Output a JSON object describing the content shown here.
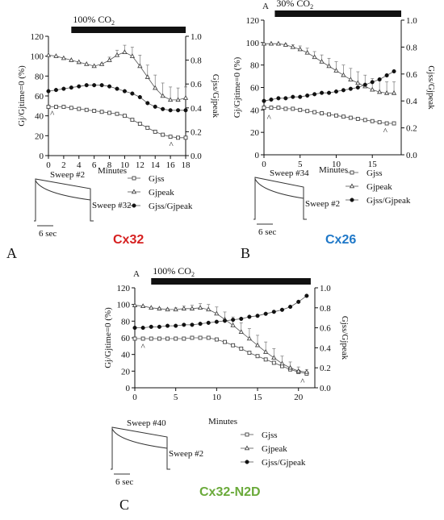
{
  "chart_data": [
    {
      "type": "scatter",
      "panel": "A",
      "label": "Cx32",
      "label_color": "#d62020",
      "panel_letter": "",
      "co2_label": "100% CO",
      "co2_sub": "2",
      "co2_bar": [
        3,
        18
      ],
      "xlabel": "Minutes",
      "ylabel": "Gj/Gjtime=0 (%)",
      "y2label": "Gjss/Gjpeak",
      "xlim": [
        0,
        18
      ],
      "ylim": [
        0,
        120
      ],
      "y2lim": [
        0,
        1.0
      ],
      "xticks": [
        0,
        2,
        4,
        6,
        8,
        10,
        12,
        14,
        16,
        18
      ],
      "yticks": [
        0,
        20,
        40,
        60,
        80,
        100,
        120
      ],
      "y2ticks": [
        "0.0",
        "0.2",
        "0.4",
        "0.6",
        "0.8",
        "1.0"
      ],
      "carets": [
        [
          0.5,
          44
        ],
        [
          16.1,
          13
        ]
      ],
      "series": [
        {
          "name": "Gjss",
          "marker": "square",
          "axis": "left",
          "x": [
            0,
            1,
            2,
            3,
            4,
            5,
            6,
            7,
            8,
            9,
            10,
            11,
            12,
            13,
            14,
            15,
            16,
            17,
            18
          ],
          "y": [
            49,
            49,
            49,
            48,
            47,
            46,
            45,
            44,
            43,
            42,
            40,
            36,
            32,
            28,
            24,
            21,
            19,
            18,
            18
          ]
        },
        {
          "name": "Gjpeak",
          "marker": "triangle",
          "axis": "left",
          "x": [
            0,
            1,
            2,
            3,
            4,
            5,
            6,
            7,
            8,
            9,
            10,
            11,
            12,
            13,
            14,
            15,
            16,
            17,
            18
          ],
          "y": [
            101,
            100,
            98,
            96,
            94,
            92,
            90,
            92,
            96,
            101,
            104,
            100,
            90,
            79,
            68,
            60,
            56,
            56,
            58
          ],
          "err": [
            0,
            0,
            0,
            0,
            0,
            0,
            0,
            1,
            3,
            5,
            7,
            9,
            11,
            12,
            13,
            13,
            13,
            12,
            11
          ]
        },
        {
          "name": "Gjss/Gjpeak",
          "marker": "dot",
          "axis": "right",
          "x": [
            0,
            1,
            2,
            3,
            4,
            5,
            6,
            7,
            8,
            9,
            10,
            11,
            12,
            13,
            14,
            15,
            16,
            17,
            18
          ],
          "y": [
            0.54,
            0.55,
            0.56,
            0.57,
            0.58,
            0.59,
            0.59,
            0.59,
            0.58,
            0.56,
            0.54,
            0.52,
            0.49,
            0.44,
            0.41,
            0.39,
            0.38,
            0.38,
            0.38
          ]
        }
      ]
    },
    {
      "type": "scatter",
      "panel": "B",
      "label": "Cx26",
      "label_color": "#1f78c8",
      "panel_letter": "A",
      "co2_label": "30% CO",
      "co2_sub": "2",
      "co2_bar": [
        1.5,
        19
      ],
      "xlabel": "Minutes",
      "ylabel": "Gj/Gjtime=0 (%)",
      "y2label": "Gjss/Gjpeak",
      "xlim": [
        0,
        19
      ],
      "ylim": [
        0,
        120
      ],
      "y2lim": [
        0,
        1.0
      ],
      "xticks": [
        0,
        5,
        10,
        15
      ],
      "yticks": [
        0,
        20,
        40,
        60,
        80,
        100,
        120
      ],
      "y2ticks": [
        "0.0",
        "0.2",
        "0.4",
        "0.6",
        "0.8",
        "1.0"
      ],
      "carets": [
        [
          0.7,
          35
        ],
        [
          16.8,
          23
        ]
      ],
      "series": [
        {
          "name": "Gjss",
          "marker": "square",
          "axis": "left",
          "x": [
            0,
            1,
            2,
            3,
            4,
            5,
            6,
            7,
            8,
            9,
            10,
            11,
            12,
            13,
            14,
            15,
            16,
            17,
            18
          ],
          "y": [
            42,
            42,
            42,
            41,
            41,
            40,
            39,
            38,
            37,
            36,
            35,
            34,
            33,
            32,
            31,
            30,
            29,
            28,
            28
          ]
        },
        {
          "name": "Gjpeak",
          "marker": "triangle",
          "axis": "left",
          "x": [
            0,
            1,
            2,
            3,
            4,
            5,
            6,
            7,
            8,
            9,
            10,
            11,
            12,
            13,
            14,
            15,
            16,
            17,
            18
          ],
          "y": [
            99,
            99,
            99,
            98,
            96,
            94,
            91,
            87,
            83,
            79,
            75,
            71,
            67,
            64,
            61,
            58,
            56,
            55,
            55
          ],
          "err": [
            0,
            0,
            0,
            1,
            2,
            3,
            4,
            5,
            6,
            7,
            8,
            9,
            10,
            10,
            10,
            10,
            10,
            10,
            10
          ]
        },
        {
          "name": "Gjss/Gjpeak",
          "marker": "dot",
          "axis": "right",
          "x": [
            0,
            1,
            2,
            3,
            4,
            5,
            6,
            7,
            8,
            9,
            10,
            11,
            12,
            13,
            14,
            15,
            16,
            17,
            18
          ],
          "y": [
            0.4,
            0.41,
            0.42,
            0.42,
            0.43,
            0.43,
            0.44,
            0.45,
            0.46,
            0.46,
            0.47,
            0.48,
            0.49,
            0.5,
            0.52,
            0.54,
            0.56,
            0.59,
            0.62
          ]
        }
      ]
    },
    {
      "type": "scatter",
      "panel": "C",
      "label": "Cx32-N2D",
      "label_color": "#6aaa3a",
      "panel_letter": "A",
      "co2_label": "100% CO",
      "co2_sub": "2",
      "co2_bar": [
        2,
        21.5
      ],
      "xlabel": "Minutes",
      "ylabel": "Gj/Gjtime=0 (%)",
      "y2label": "Gjss/Gjpeak",
      "xlim": [
        0,
        22
      ],
      "ylim": [
        0,
        120
      ],
      "y2lim": [
        0,
        1.0
      ],
      "xticks": [
        0,
        5,
        10,
        15,
        20
      ],
      "yticks": [
        0,
        20,
        40,
        60,
        80,
        100,
        120
      ],
      "y2ticks": [
        "0.0",
        "0.2",
        "0.4",
        "0.6",
        "0.8",
        "1.0"
      ],
      "carets": [
        [
          1,
          52
        ],
        [
          20.5,
          10
        ]
      ],
      "series": [
        {
          "name": "Gjss",
          "marker": "square",
          "axis": "left",
          "x": [
            0,
            1,
            2,
            3,
            4,
            5,
            6,
            7,
            8,
            9,
            10,
            11,
            12,
            13,
            14,
            15,
            16,
            17,
            18,
            19,
            20,
            21
          ],
          "y": [
            59,
            59,
            59,
            59,
            59,
            59,
            59,
            60,
            60,
            60,
            58,
            55,
            51,
            47,
            42,
            38,
            34,
            30,
            26,
            22,
            19,
            17
          ]
        },
        {
          "name": "Gjpeak",
          "marker": "triangle",
          "axis": "left",
          "x": [
            0,
            1,
            2,
            3,
            4,
            5,
            6,
            7,
            8,
            9,
            10,
            11,
            12,
            13,
            14,
            15,
            16,
            17,
            18,
            19,
            20,
            21
          ],
          "y": [
            99,
            98,
            96,
            95,
            94,
            94,
            95,
            95,
            96,
            94,
            89,
            82,
            75,
            67,
            59,
            51,
            43,
            36,
            29,
            24,
            20,
            19
          ],
          "err": [
            0,
            0,
            0,
            1,
            1,
            2,
            3,
            4,
            5,
            6,
            8,
            9,
            10,
            11,
            12,
            12,
            12,
            11,
            9,
            7,
            5,
            3
          ]
        },
        {
          "name": "Gjss/Gjpeak",
          "marker": "dot",
          "axis": "right",
          "x": [
            0,
            1,
            2,
            3,
            4,
            5,
            6,
            7,
            8,
            9,
            10,
            11,
            12,
            13,
            14,
            15,
            16,
            17,
            18,
            19,
            20,
            21
          ],
          "y": [
            0.6,
            0.6,
            0.61,
            0.61,
            0.62,
            0.62,
            0.63,
            0.63,
            0.64,
            0.65,
            0.66,
            0.67,
            0.68,
            0.69,
            0.71,
            0.72,
            0.74,
            0.76,
            0.78,
            0.81,
            0.86,
            0.92
          ]
        }
      ]
    }
  ],
  "insets": [
    {
      "sweep_top": "Sweep #2",
      "sweep_bottom": "Sweep #32",
      "scale": "6 sec",
      "minutes": "Minutes"
    },
    {
      "sweep_top": "Sweep #34",
      "sweep_bottom": "Sweep #2",
      "scale": "6 sec",
      "minutes": "Minutes"
    },
    {
      "sweep_top": "Sweep #40",
      "sweep_bottom": "Sweep #2",
      "scale": "6 sec",
      "minutes": "Minutes"
    }
  ],
  "panel_letters": [
    "A",
    "B",
    "C"
  ]
}
